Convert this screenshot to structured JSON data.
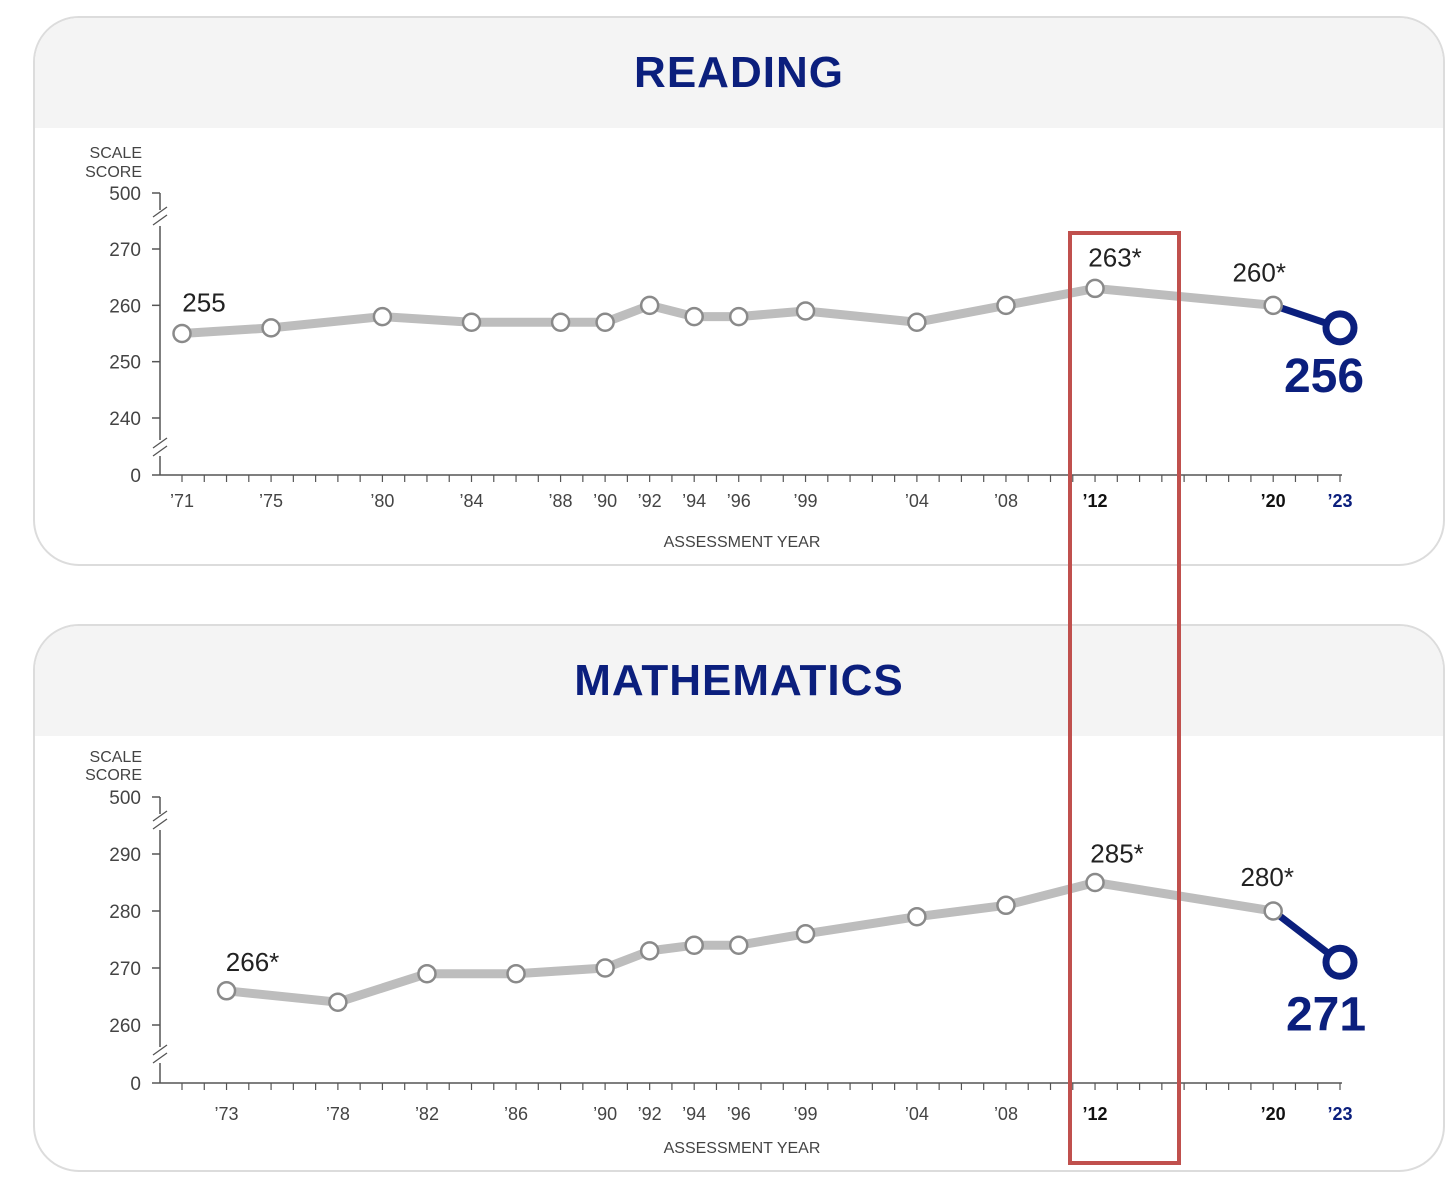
{
  "colors": {
    "line": "#bdbdbd",
    "point_fill": "#ffffff",
    "point_stroke": "#8a8a8a",
    "highlight": "#0b1f7d",
    "axis": "#555555",
    "label": "#222222",
    "box": "#c0504d"
  },
  "chart_data": [
    {
      "type": "line",
      "title": "READING",
      "ylabel": "SCALE SCORE",
      "xlabel": "ASSESSMENT YEAR",
      "yticks": [
        "500",
        "270",
        "260",
        "250",
        "240",
        "0"
      ],
      "ylim": [
        240,
        270
      ],
      "axis_breaks": true,
      "grid": false,
      "x_tick_labels": [
        "’71",
        "’75",
        "’80",
        "’84",
        "’88",
        "’90",
        "’92",
        "’94",
        "’96",
        "’99",
        "’04",
        "’08",
        "’12",
        "’20",
        "’23"
      ],
      "x": [
        1971,
        1975,
        1980,
        1984,
        1988,
        1990,
        1992,
        1994,
        1996,
        1999,
        2004,
        2008,
        2012,
        2020,
        2023
      ],
      "values": [
        255,
        256,
        258,
        257,
        257,
        257,
        260,
        258,
        258,
        259,
        257,
        260,
        263,
        260,
        256
      ],
      "point_labels": [
        {
          "x": 1971,
          "text": "255"
        },
        {
          "x": 2012,
          "text": "263*"
        },
        {
          "x": 2020,
          "text": "260*"
        },
        {
          "x": 2023,
          "text": "256"
        }
      ],
      "highlighted_year": 2012
    },
    {
      "type": "line",
      "title": "MATHEMATICS",
      "ylabel": "SCALE SCORE",
      "xlabel": "ASSESSMENT YEAR",
      "yticks": [
        "500",
        "290",
        "280",
        "270",
        "260",
        "0"
      ],
      "ylim": [
        260,
        290
      ],
      "axis_breaks": true,
      "grid": false,
      "x_tick_labels": [
        "’73",
        "’78",
        "’82",
        "’86",
        "’90",
        "’92",
        "’94",
        "’96",
        "’99",
        "’04",
        "’08",
        "’12",
        "’20",
        "’23"
      ],
      "x": [
        1973,
        1978,
        1982,
        1986,
        1990,
        1992,
        1994,
        1996,
        1999,
        2004,
        2008,
        2012,
        2020,
        2023
      ],
      "values": [
        266,
        264,
        269,
        269,
        270,
        273,
        274,
        274,
        276,
        279,
        281,
        285,
        280,
        271
      ],
      "point_labels": [
        {
          "x": 1973,
          "text": "266*"
        },
        {
          "x": 2012,
          "text": "285*"
        },
        {
          "x": 2020,
          "text": "280*"
        },
        {
          "x": 2023,
          "text": "271"
        }
      ],
      "highlighted_year": 2012
    }
  ]
}
